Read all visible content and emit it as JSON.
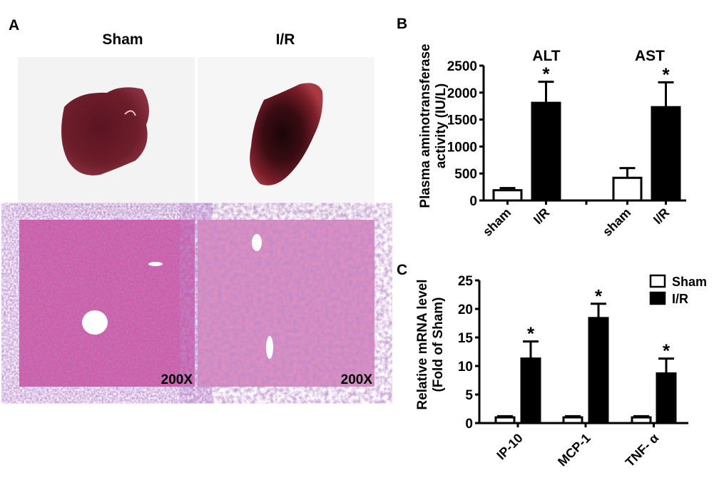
{
  "panel_a": {
    "letter": "A",
    "columns": [
      "Sham",
      "I/R"
    ],
    "magnification": "200X"
  },
  "chart_data": [
    {
      "panel": "B",
      "type": "bar",
      "ylabel_line1": "Plasma aminotransferase",
      "ylabel_line2": "activity (IU/L)",
      "groups": [
        "ALT",
        "AST"
      ],
      "categories": [
        "sham",
        "I/R",
        "sham",
        "I/R"
      ],
      "values": [
        190,
        1810,
        420,
        1730
      ],
      "errors": [
        40,
        390,
        180,
        460
      ],
      "fills": [
        "#ffffff",
        "#000000",
        "#ffffff",
        "#000000"
      ],
      "significant": [
        false,
        true,
        false,
        true
      ],
      "significance_mark": "*",
      "ylim": [
        0,
        2500
      ],
      "yticks": [
        "0",
        "500",
        "1000",
        "1500",
        "2000",
        "2500"
      ],
      "grid": false
    },
    {
      "panel": "C",
      "type": "bar",
      "ylabel_line1": "Relative mRNA level",
      "ylabel_line2": "(Fold of Sham)",
      "categories": [
        "IP-10",
        "MCP-1",
        "TNF- α"
      ],
      "series": [
        {
          "name": "Sham",
          "color": "#ffffff",
          "values": [
            1.0,
            1.0,
            1.0
          ],
          "errors": [
            0.2,
            0.2,
            0.2
          ],
          "significant": [
            false,
            false,
            false
          ]
        },
        {
          "name": "I/R",
          "color": "#000000",
          "values": [
            11.3,
            18.4,
            8.7
          ],
          "errors": [
            3.0,
            2.5,
            2.6
          ],
          "significant": [
            true,
            true,
            true
          ]
        }
      ],
      "significance_mark": "*",
      "ylim": [
        0,
        25
      ],
      "yticks": [
        "0",
        "5",
        "10",
        "15",
        "20",
        "25"
      ],
      "legend": "top-right",
      "grid": false
    }
  ]
}
